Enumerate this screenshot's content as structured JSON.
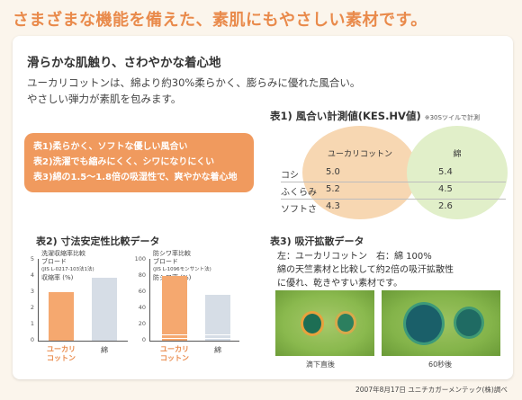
{
  "headline": "さまざまな機能を備えた、素肌にもやさしい素材です。",
  "subtitle": "滑らかな肌触り、さわやかな着心地",
  "intro": [
    "ユーカリコットンは、綿より約30%柔らかく、膨らみに優れた風合い。",
    "やさしい弾力が素肌を包みます。"
  ],
  "features": [
    "表1)柔らかく、ソフトな優しい風合い",
    "表2)洗濯でも縮みにくく、シワになりにくい",
    "表3)綿の1.5〜1.8倍の吸湿性で、爽やかな着心地"
  ],
  "table1": {
    "title": "表1) 風合い計測値(KES.HV値)",
    "note": "※30Sツイルで計測",
    "columns": [
      "ユーカリコットン",
      "綿"
    ],
    "rows": [
      {
        "label": "コシ",
        "a": "5.0",
        "b": "5.4"
      },
      {
        "label": "ふくらみ",
        "a": "5.2",
        "b": "4.5"
      },
      {
        "label": "ソフトさ",
        "a": "4.3",
        "b": "2.6"
      }
    ],
    "colors": {
      "a": "#f7d7b2",
      "b": "#e1efc9"
    }
  },
  "table2": {
    "title": "表2) 寸法安定性比較データ",
    "y_ticks": [
      "5",
      "4",
      "3",
      "2",
      "1",
      "0"
    ],
    "left": {
      "legend": [
        "洗濯収縮率比較",
        "ブロード",
        "(JIS L-0217-103法1法)",
        "収縮率 (%)"
      ],
      "label_a": [
        "ユーカリ",
        "コットン"
      ],
      "label_b": "綿",
      "value_a": 3.0,
      "value_b": 3.9,
      "ymax": 5
    },
    "right": {
      "legend": [
        "防シワ率比較",
        "ブロード",
        "(JIS L-1096モンサント法)",
        "防シワ率 (%)"
      ],
      "y_ticks": [
        "100",
        "80",
        "60",
        "40",
        "20",
        "0"
      ],
      "label_a": [
        "ユーカリ",
        "コットン"
      ],
      "label_b": "綿",
      "value_a": 80,
      "value_b": 57,
      "ymax": 100
    }
  },
  "table3": {
    "title": "表3) 吸汗拡散データ",
    "lines": [
      "左：ユーカリコットン　右：綿 100%",
      "綿の天竺素材と比較して約2倍の吸汗拡散性",
      "に優れ、乾きやすい素材です。"
    ],
    "photo_labels": [
      "滴下直後",
      "60秒後"
    ]
  },
  "footer": "2007年8月17日 ユニチカガーメンテック(株)調べ",
  "colors": {
    "accent": "#e98a4b",
    "orange_box": "#f09a5e",
    "bar_a": "#f5a86f",
    "bar_b": "#d6dde6"
  }
}
